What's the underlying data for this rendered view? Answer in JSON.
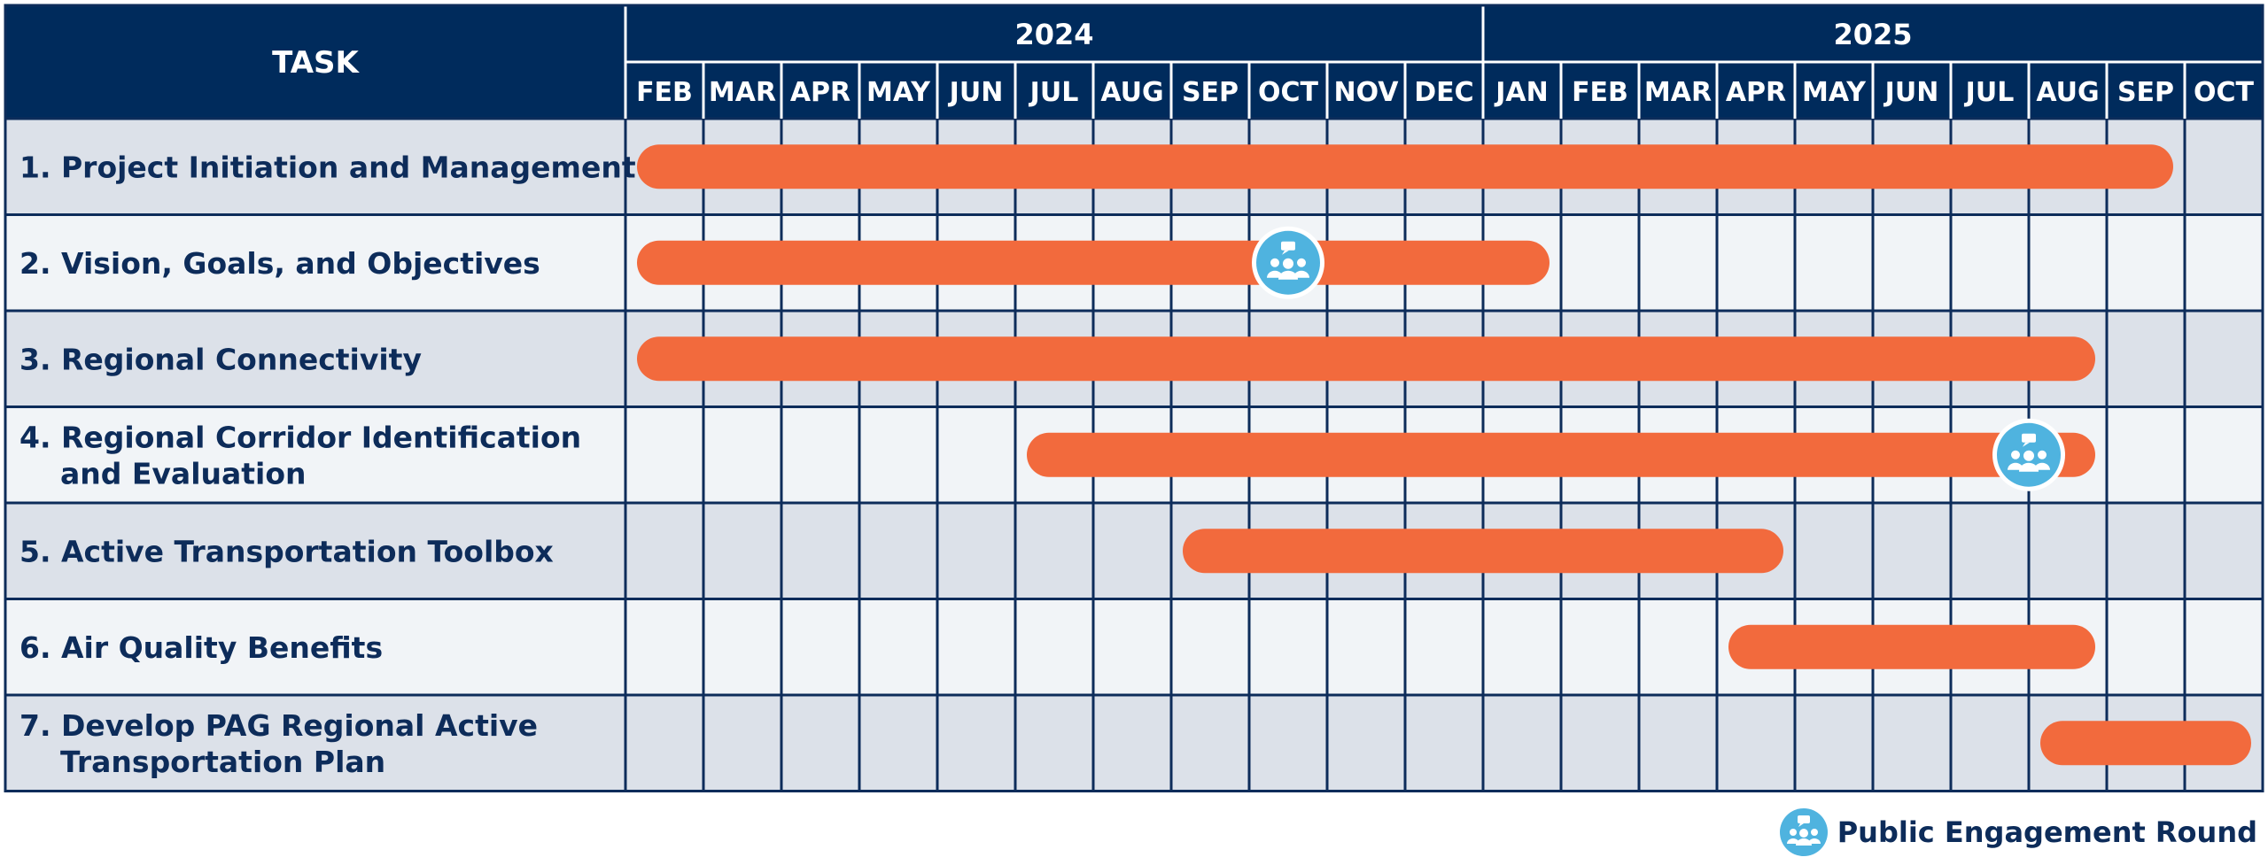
{
  "chart_data": {
    "type": "gantt",
    "task_header": "TASK",
    "years": [
      {
        "label": "2024",
        "months": [
          "FEB",
          "MAR",
          "APR",
          "MAY",
          "JUN",
          "JUL",
          "AUG",
          "SEP",
          "OCT",
          "NOV",
          "DEC"
        ]
      },
      {
        "label": "2025",
        "months": [
          "JAN",
          "FEB",
          "MAR",
          "APR",
          "MAY",
          "JUN",
          "JUL",
          "AUG",
          "SEP",
          "OCT"
        ]
      }
    ],
    "tasks": [
      {
        "lines": [
          "1. Project Initiation and Management"
        ],
        "start": 0,
        "end": 20,
        "milestones": []
      },
      {
        "lines": [
          "2. Vision, Goals, and Objectives"
        ],
        "start": 0,
        "end": 12,
        "milestones": [
          8.5
        ]
      },
      {
        "lines": [
          "3. Regional Connectivity"
        ],
        "start": 0,
        "end": 19,
        "milestones": []
      },
      {
        "lines": [
          "4. Regional Corridor Identification",
          "and Evaluation"
        ],
        "start": 5,
        "end": 19,
        "milestones": [
          18
        ]
      },
      {
        "lines": [
          "5. Active Transportation Toolbox"
        ],
        "start": 7,
        "end": 15,
        "milestones": []
      },
      {
        "lines": [
          "6. Air Quality Benefits"
        ],
        "start": 14,
        "end": 19,
        "milestones": []
      },
      {
        "lines": [
          "7. Develop PAG Regional Active",
          "Transportation Plan"
        ],
        "start": 18,
        "end": 21,
        "milestones": []
      }
    ],
    "legend": {
      "label": "Public Engagement Round",
      "icon": "public-engagement-icon"
    },
    "colors": {
      "header": "#002b5c",
      "bar": "#f26a3d",
      "milestone": "#4fb3df",
      "row_dark": "#dce1e9",
      "row_light": "#f1f4f7",
      "grid": "#0d2c5a",
      "task_text": "#0d2c5a"
    }
  }
}
